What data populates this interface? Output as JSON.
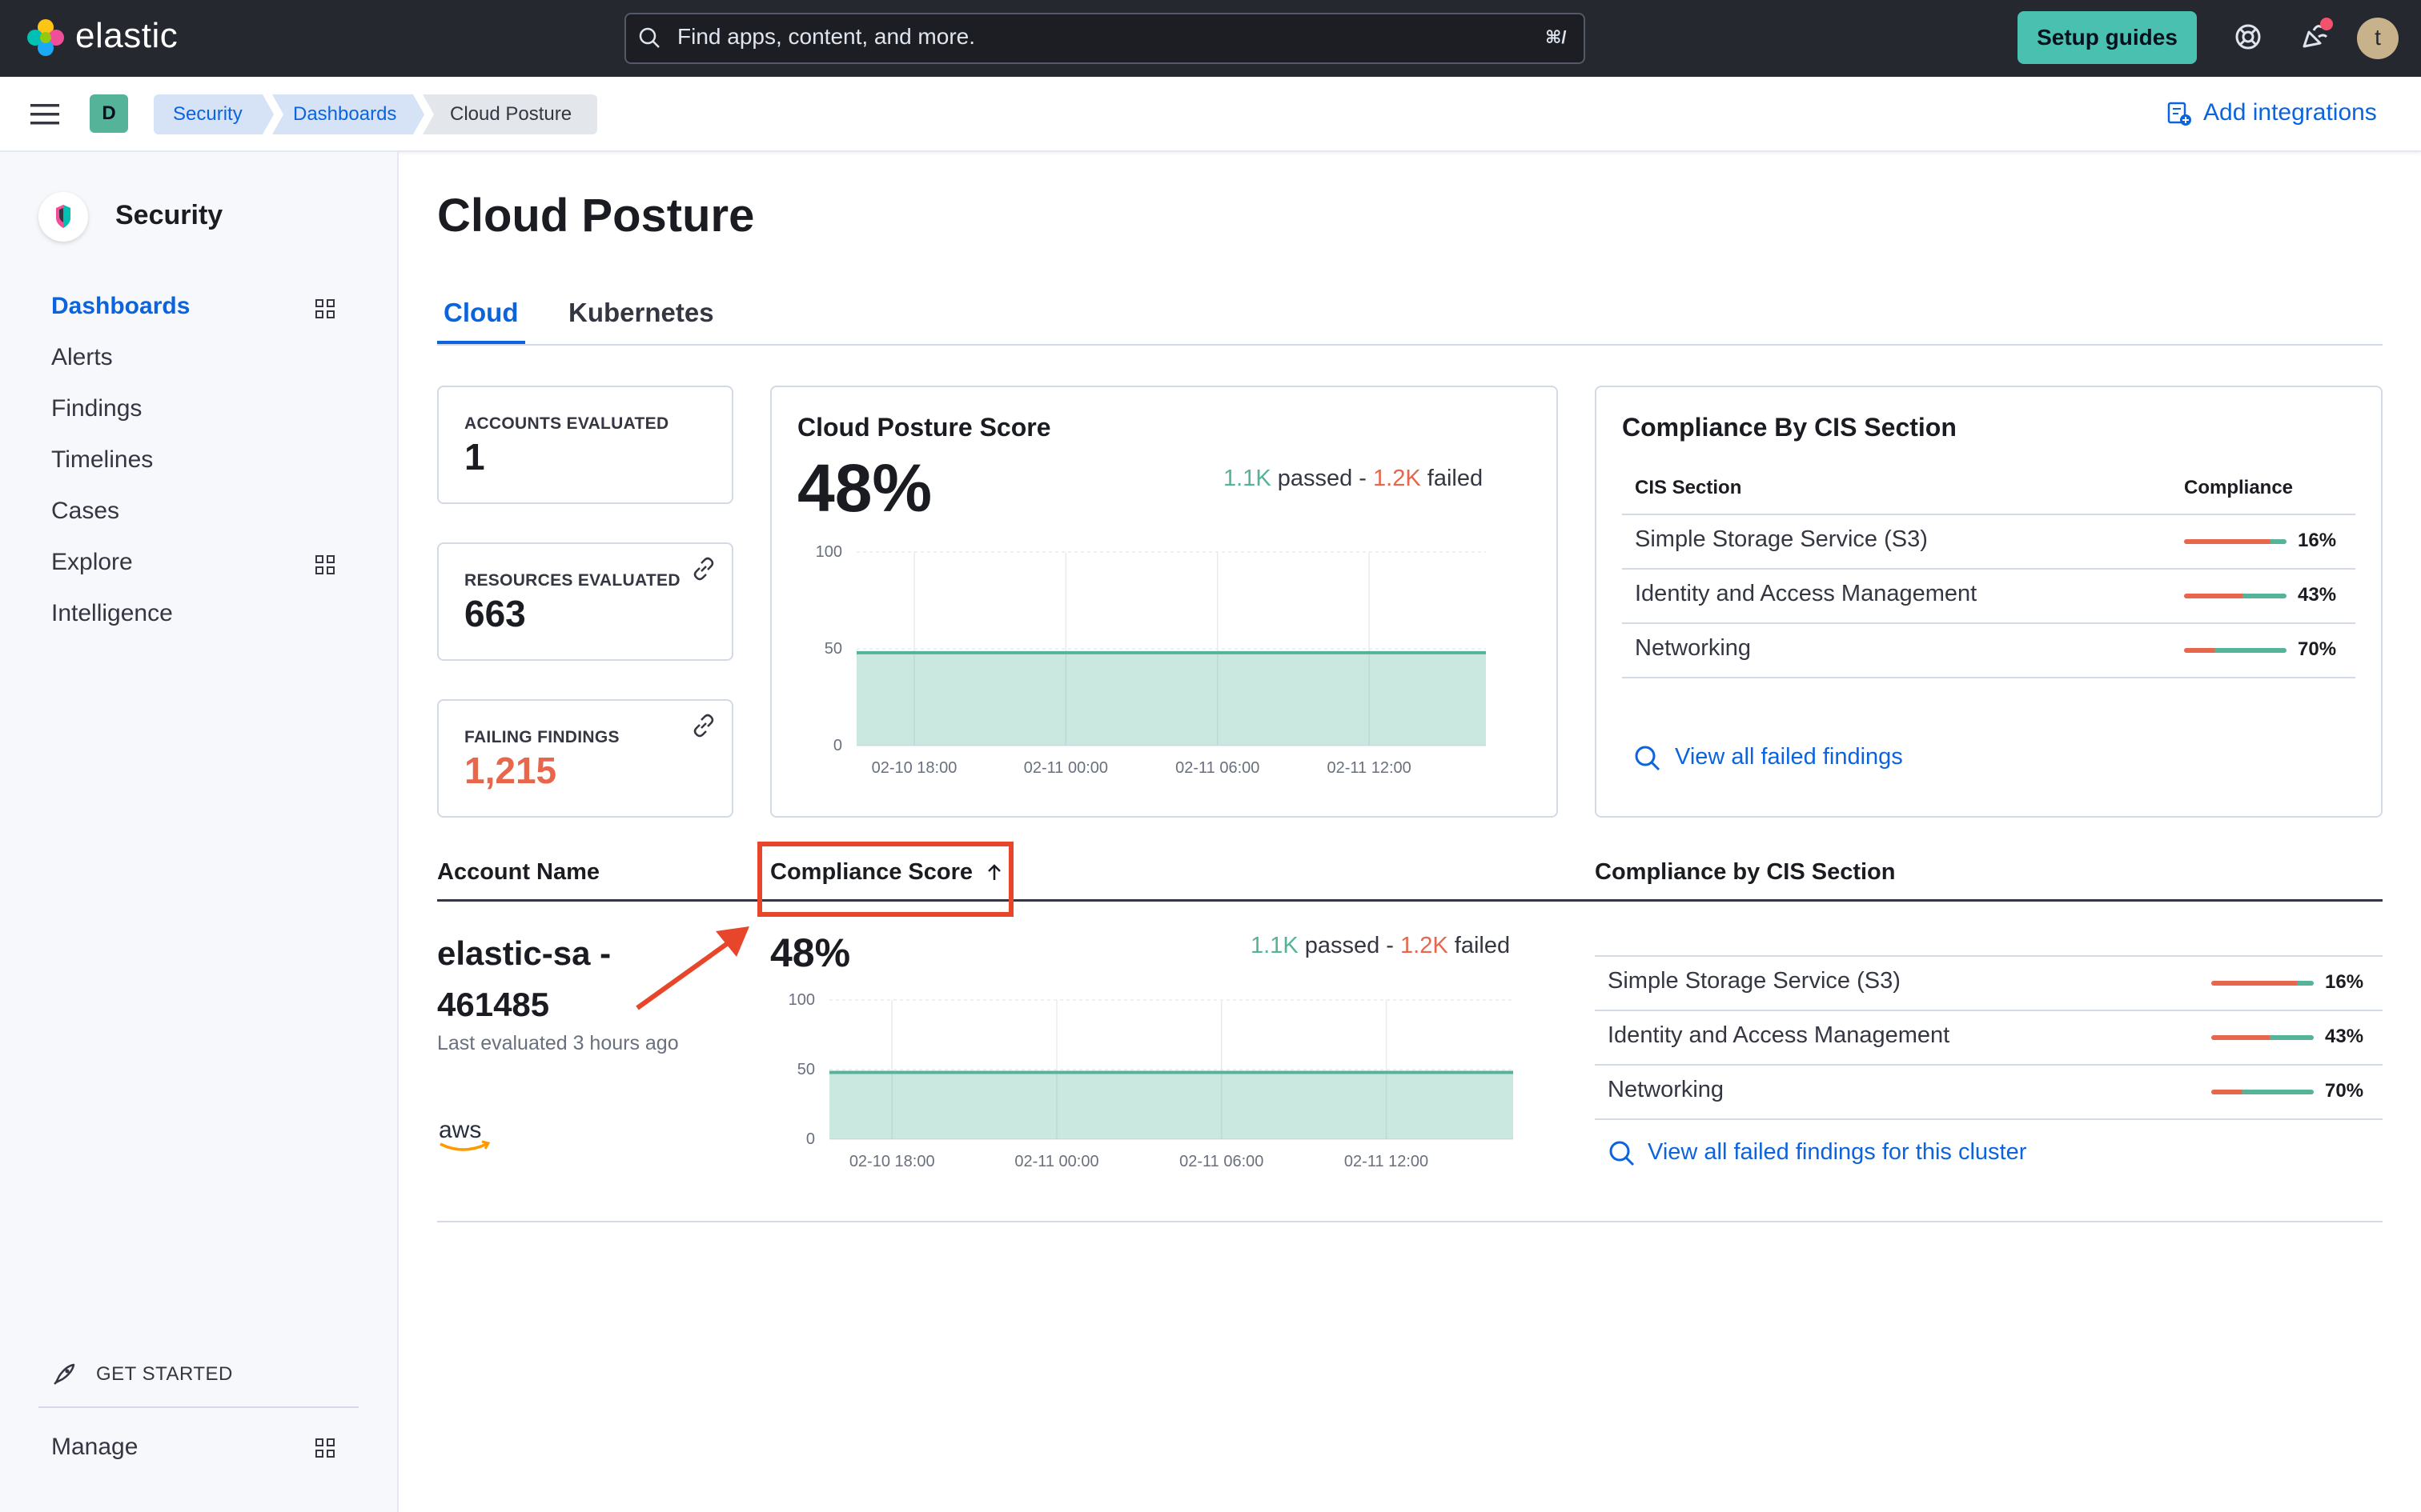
{
  "header": {
    "logo_text": "elastic",
    "search_placeholder": "Find apps, content, and more.",
    "search_shortcut": "⌘/",
    "setup_guides": "Setup guides",
    "avatar_initial": "t"
  },
  "subheader": {
    "space_initial": "D",
    "breadcrumbs": [
      "Security",
      "Dashboards",
      "Cloud Posture"
    ],
    "add_integrations": "Add integrations"
  },
  "sidebar": {
    "title": "Security",
    "items": [
      {
        "label": "Dashboards",
        "active": true
      },
      {
        "label": "Alerts"
      },
      {
        "label": "Findings"
      },
      {
        "label": "Timelines"
      },
      {
        "label": "Cases"
      },
      {
        "label": "Explore"
      },
      {
        "label": "Intelligence"
      }
    ],
    "get_started": "GET STARTED",
    "manage": "Manage"
  },
  "page": {
    "title": "Cloud Posture",
    "tabs": [
      "Cloud",
      "Kubernetes"
    ]
  },
  "stats": {
    "accounts_label": "ACCOUNTS EVALUATED",
    "accounts_value": "1",
    "resources_label": "RESOURCES EVALUATED",
    "resources_value": "663",
    "failing_label": "FAILING FINDINGS",
    "failing_value": "1,215"
  },
  "score_card": {
    "title": "Cloud Posture Score",
    "score": "48%",
    "passed": "1.1K",
    "passed_word": "passed -",
    "failed": "1.2K",
    "failed_word": "failed",
    "chart_data": {
      "type": "area",
      "x": [
        "02-10 18:00",
        "02-11 00:00",
        "02-11 06:00",
        "02-11 12:00"
      ],
      "y": [
        48,
        48,
        48,
        48
      ],
      "yticks": [
        0,
        50,
        100
      ],
      "ylim": [
        0,
        100
      ]
    }
  },
  "cis_card": {
    "title": "Compliance By CIS Section",
    "col_section": "CIS Section",
    "col_compliance": "Compliance",
    "rows": [
      {
        "name": "Simple Storage Service (S3)",
        "pct": "16%",
        "value": 0.16
      },
      {
        "name": "Identity and Access Management",
        "pct": "43%",
        "value": 0.43
      },
      {
        "name": "Networking",
        "pct": "70%",
        "value": 0.7
      }
    ],
    "view_all": "View all failed findings"
  },
  "table": {
    "col_account": "Account Name",
    "col_score": "Compliance Score",
    "col_cis": "Compliance by CIS Section",
    "row": {
      "account_name": "elastic-sa - 461485",
      "last_evaluated": "Last evaluated 3 hours ago",
      "provider": "aws",
      "score": "48%",
      "passed": "1.1K",
      "passed_word": "passed -",
      "failed": "1.2K",
      "failed_word": "failed",
      "chart_data": {
        "type": "area",
        "x": [
          "02-10 18:00",
          "02-11 00:00",
          "02-11 06:00",
          "02-11 12:00"
        ],
        "y": [
          48,
          48,
          48,
          48
        ],
        "yticks": [
          0,
          50,
          100
        ],
        "ylim": [
          0,
          100
        ]
      },
      "cis_rows": [
        {
          "name": "Simple Storage Service (S3)",
          "pct": "16%",
          "value": 0.16
        },
        {
          "name": "Identity and Access Management",
          "pct": "43%",
          "value": 0.43
        },
        {
          "name": "Networking",
          "pct": "70%",
          "value": 0.7
        }
      ],
      "view_all": "View all failed findings for this cluster"
    }
  },
  "colors": {
    "pass": "#54b399",
    "fail": "#e7664c",
    "link": "#0b64dd",
    "highlight": "#e8462a"
  }
}
